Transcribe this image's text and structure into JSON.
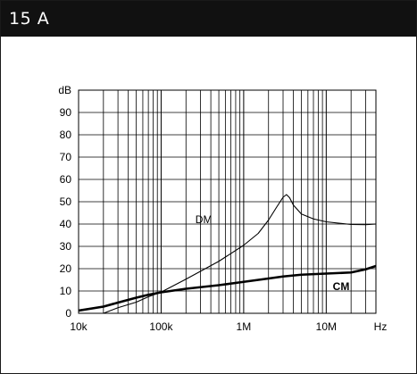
{
  "header": {
    "title": "15 A",
    "bg_color": "#111111"
  },
  "chart_data": {
    "type": "line",
    "title": "",
    "xlabel": "",
    "ylabel": "",
    "x_scale": "log",
    "xlim": [
      10000,
      40000000
    ],
    "ylim": [
      0,
      100
    ],
    "grid": true,
    "x_tick_labels": [
      "10k",
      "100k",
      "1M",
      "10M"
    ],
    "x_tick_values": [
      10000,
      100000,
      1000000,
      10000000
    ],
    "x_unit_label": "Hz",
    "y_unit_label": "dB",
    "y_tick_values": [
      0,
      10,
      20,
      30,
      40,
      50,
      60,
      70,
      80,
      90
    ],
    "series": [
      {
        "name": "DM",
        "style": "thin",
        "x": [
          20000,
          30000,
          50000,
          70000,
          100000,
          200000,
          500000,
          1000000,
          1500000,
          2000000,
          2500000,
          3000000,
          3300000,
          3600000,
          4000000,
          5000000,
          7000000,
          10000000,
          20000000,
          30000000,
          40000000
        ],
        "y": [
          0,
          2.5,
          5,
          7.4,
          9.5,
          15.3,
          23.3,
          30.5,
          35.8,
          41.8,
          47.5,
          52,
          53.2,
          51.8,
          48.5,
          44.5,
          42.3,
          41,
          39.8,
          39.7,
          40
        ]
      },
      {
        "name": "CM",
        "style": "thick",
        "x": [
          10000,
          20000,
          30000,
          50000,
          70000,
          100000,
          200000,
          500000,
          1000000,
          2000000,
          3000000,
          5000000,
          10000000,
          20000000,
          30000000,
          40000000
        ],
        "y": [
          1.2,
          3,
          4.8,
          7,
          8.3,
          9.4,
          11,
          12.6,
          14.1,
          15.6,
          16.5,
          17.3,
          17.8,
          18.3,
          19.7,
          21.2
        ]
      }
    ]
  }
}
